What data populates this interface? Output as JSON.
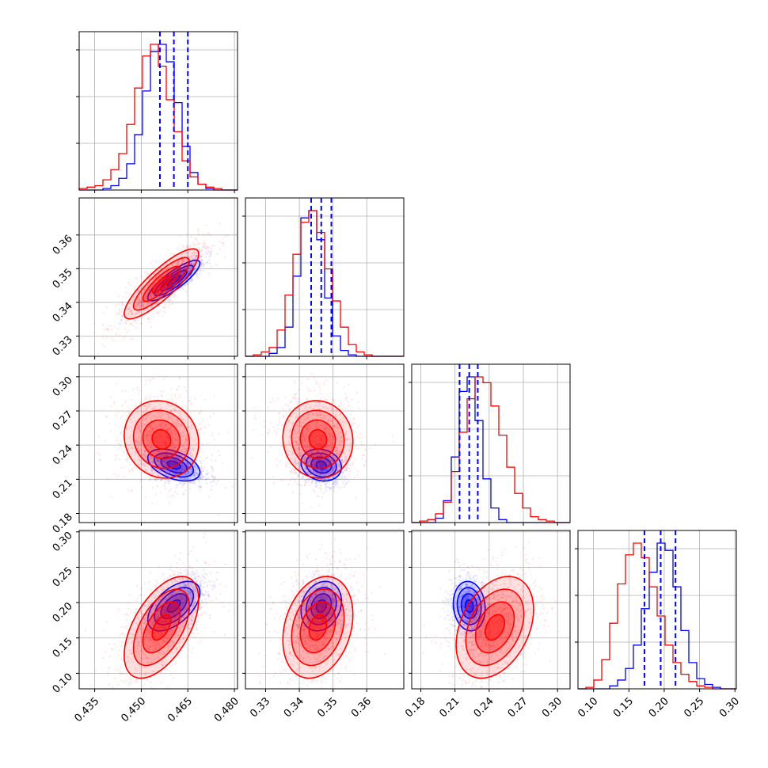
{
  "chart_data": {
    "type": "corner",
    "title": "",
    "series": [
      {
        "name": "",
        "color": "#0000ff"
      },
      {
        "name": "",
        "color": "#ff0000"
      }
    ],
    "parameters": [
      {
        "index": 0,
        "range": [
          0.43,
          0.481
        ],
        "ticks": [
          "0.435",
          "0.450",
          "0.465",
          "0.480"
        ]
      },
      {
        "index": 1,
        "range": [
          0.324,
          0.371
        ],
        "ticks": [
          "0.33",
          "0.34",
          "0.35",
          "0.36"
        ]
      },
      {
        "index": 2,
        "range": [
          0.172,
          0.311
        ],
        "ticks": [
          "0.18",
          "0.21",
          "0.24",
          "0.27",
          "0.30"
        ]
      },
      {
        "index": 3,
        "range": [
          0.078,
          0.302
        ],
        "ticks": [
          "0.10",
          "0.15",
          "0.20",
          "0.25",
          "0.30"
        ]
      }
    ],
    "blue": {
      "mean": [
        0.4605,
        0.3465,
        0.2225,
        0.195
      ],
      "sd": [
        0.0042,
        0.003,
        0.007,
        0.0175
      ],
      "corr": [
        [
          1,
          0.85,
          -0.45,
          0.55
        ],
        [
          0.85,
          1,
          -0.15,
          0.2
        ],
        [
          -0.45,
          -0.15,
          1,
          -0.1
        ],
        [
          0.55,
          0.2,
          -0.1,
          1
        ]
      ],
      "quantiles": [
        [
          0.456,
          0.4605,
          0.465
        ],
        [
          0.3435,
          0.3465,
          0.3495
        ],
        [
          0.214,
          0.2225,
          0.23
        ],
        [
          0.172,
          0.195,
          0.216
        ]
      ]
    },
    "red": {
      "mean": [
        0.4565,
        0.3455,
        0.245,
        0.165
      ],
      "sd": [
        0.006,
        0.0052,
        0.017,
        0.036
      ],
      "corr": [
        [
          1,
          0.85,
          -0.1,
          0.55
        ],
        [
          0.85,
          1,
          -0.05,
          0.25
        ],
        [
          -0.1,
          -0.05,
          1,
          0.35
        ],
        [
          0.55,
          0.25,
          0.35,
          1
        ]
      ]
    },
    "histograms": {
      "blue": [
        [
          0,
          0,
          0,
          1,
          3,
          8,
          18,
          38,
          68,
          95,
          100,
          88,
          60,
          30,
          12,
          4,
          1,
          0,
          0,
          0
        ],
        [
          0,
          0,
          0,
          2,
          6,
          20,
          55,
          95,
          100,
          80,
          40,
          14,
          4,
          1,
          0,
          0,
          0,
          0,
          0,
          0
        ],
        [
          0,
          0,
          0,
          3,
          15,
          45,
          90,
          100,
          70,
          30,
          10,
          2,
          0,
          0,
          0,
          0,
          0,
          0,
          0,
          0
        ],
        [
          0,
          0,
          0,
          0,
          2,
          6,
          14,
          30,
          55,
          80,
          100,
          95,
          70,
          40,
          18,
          7,
          3,
          1,
          0,
          0
        ]
      ],
      "red": [
        [
          1,
          2,
          3,
          7,
          14,
          25,
          45,
          70,
          92,
          100,
          85,
          62,
          40,
          20,
          9,
          4,
          2,
          1,
          0,
          0
        ],
        [
          0,
          1,
          3,
          6,
          18,
          42,
          70,
          92,
          100,
          85,
          60,
          38,
          20,
          8,
          3,
          1,
          0,
          0,
          0,
          0
        ],
        [
          0,
          1,
          2,
          6,
          14,
          35,
          62,
          85,
          100,
          96,
          80,
          60,
          38,
          20,
          10,
          4,
          2,
          1,
          0,
          0
        ],
        [
          0,
          1,
          6,
          20,
          45,
          72,
          92,
          100,
          90,
          70,
          50,
          30,
          18,
          10,
          5,
          2,
          1,
          0,
          0,
          0
        ]
      ]
    },
    "grid": true,
    "xlabel": "",
    "ylabel": ""
  }
}
